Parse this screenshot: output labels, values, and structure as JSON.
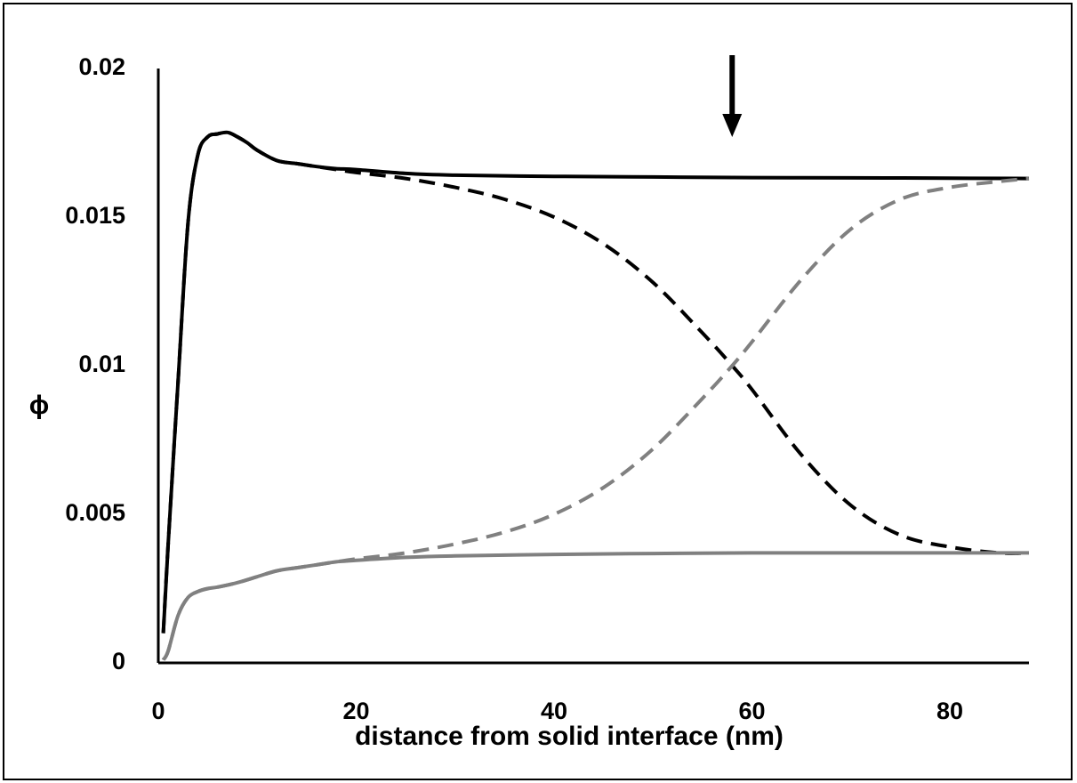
{
  "chart_data": {
    "type": "line",
    "xlabel": "distance from solid interface (nm)",
    "ylabel": "ϕ",
    "xlim": [
      0,
      88
    ],
    "ylim": [
      0,
      0.02
    ],
    "x_ticks": [
      {
        "value": 0,
        "label": "0"
      },
      {
        "value": 20,
        "label": "20"
      },
      {
        "value": 40,
        "label": "40"
      },
      {
        "value": 60,
        "label": "60"
      },
      {
        "value": 80,
        "label": "80"
      }
    ],
    "y_ticks": [
      {
        "value": 0,
        "label": "0"
      },
      {
        "value": 0.005,
        "label": "0.005"
      },
      {
        "value": 0.01,
        "label": "0.01"
      },
      {
        "value": 0.015,
        "label": "0.015"
      },
      {
        "value": 0.02,
        "label": "0.02"
      }
    ],
    "grid": false,
    "legend": "none",
    "annotation": {
      "type": "down-arrow",
      "x": 58
    },
    "series": [
      {
        "color": "#000000",
        "dash": "solid",
        "x": [
          0.5,
          1,
          2,
          3,
          4,
          5,
          6,
          7,
          8,
          9,
          10,
          12,
          14,
          16,
          18,
          20,
          25,
          30,
          40,
          50,
          60,
          70,
          80,
          88
        ],
        "y": [
          0.001,
          0.004,
          0.0095,
          0.0148,
          0.0171,
          0.0177,
          0.0178,
          0.01785,
          0.0177,
          0.0175,
          0.01725,
          0.0169,
          0.0168,
          0.0167,
          0.01663,
          0.0166,
          0.01647,
          0.01641,
          0.01637,
          0.01635,
          0.01633,
          0.01632,
          0.01631,
          0.0163
        ]
      },
      {
        "color": "#000000",
        "dash": "dashed",
        "x": [
          0.5,
          1,
          2,
          3,
          4,
          5,
          6,
          7,
          8,
          9,
          10,
          12,
          14,
          16,
          18,
          20,
          25,
          30,
          35,
          40,
          45,
          50,
          55,
          58,
          60,
          65,
          70,
          75,
          80,
          85,
          88
        ],
        "y": [
          0.001,
          0.004,
          0.0095,
          0.0148,
          0.0171,
          0.0177,
          0.0178,
          0.01785,
          0.0177,
          0.0175,
          0.01725,
          0.0169,
          0.0168,
          0.0167,
          0.0166,
          0.0165,
          0.0163,
          0.016,
          0.0156,
          0.015,
          0.0141,
          0.0128,
          0.0111,
          0.01,
          0.0092,
          0.007,
          0.0053,
          0.0043,
          0.0039,
          0.0037,
          0.0037
        ]
      },
      {
        "color": "#808080",
        "dash": "solid",
        "x": [
          0.5,
          1,
          2,
          3,
          4,
          5,
          6,
          8,
          10,
          12,
          14,
          16,
          18,
          20,
          25,
          30,
          40,
          50,
          60,
          70,
          80,
          88
        ],
        "y": [
          0.0001,
          0.0004,
          0.0016,
          0.0022,
          0.0024,
          0.0025,
          0.00255,
          0.0027,
          0.0029,
          0.0031,
          0.0032,
          0.0033,
          0.0034,
          0.00345,
          0.00355,
          0.0036,
          0.00365,
          0.00368,
          0.0037,
          0.0037,
          0.0037,
          0.0037
        ]
      },
      {
        "color": "#808080",
        "dash": "dashed",
        "x": [
          0.5,
          1,
          2,
          3,
          4,
          5,
          6,
          8,
          10,
          12,
          14,
          16,
          18,
          20,
          25,
          30,
          35,
          40,
          45,
          50,
          55,
          58,
          60,
          65,
          70,
          75,
          80,
          85,
          88
        ],
        "y": [
          0.0001,
          0.0004,
          0.0016,
          0.0022,
          0.0024,
          0.0025,
          0.00255,
          0.0027,
          0.0029,
          0.0031,
          0.0032,
          0.0033,
          0.0034,
          0.0035,
          0.0037,
          0.004,
          0.0044,
          0.005,
          0.0059,
          0.0072,
          0.0089,
          0.01,
          0.0108,
          0.0129,
          0.0146,
          0.0156,
          0.016,
          0.0162,
          0.0163
        ]
      }
    ]
  }
}
